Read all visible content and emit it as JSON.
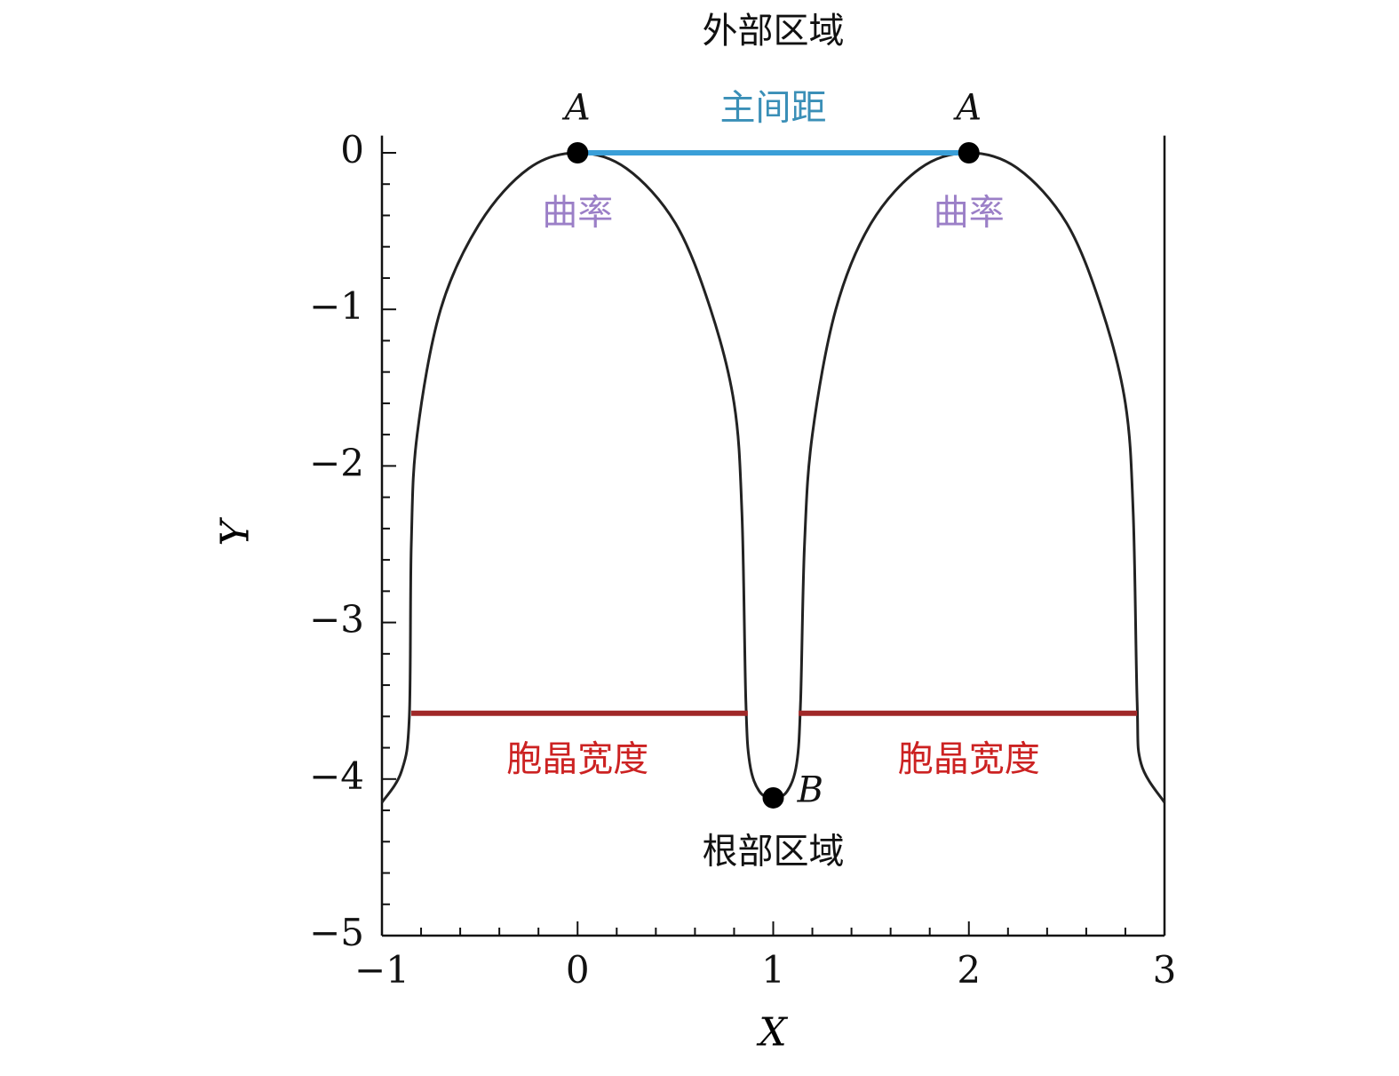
{
  "chart_data": {
    "type": "line",
    "xlabel": "X",
    "ylabel": "Y",
    "xlim": [
      -1,
      3
    ],
    "ylim": [
      -5,
      0.11
    ],
    "xticks": [
      {
        "value": -1,
        "label": "−1"
      },
      0,
      1,
      2,
      3
    ],
    "yticks": [
      0,
      {
        "value": -1,
        "label": "−1"
      },
      {
        "value": -2,
        "label": "−2"
      },
      {
        "value": -3,
        "label": "−3"
      },
      {
        "value": -4,
        "label": "−4"
      },
      {
        "value": -5,
        "label": "−5"
      }
    ],
    "xminorticks": [
      -0.8,
      -0.6,
      -0.4,
      -0.2,
      0.2,
      0.4,
      0.6,
      0.8,
      1.2,
      1.4,
      1.6,
      1.8,
      2.2,
      2.4,
      2.6,
      2.8
    ],
    "yminorticks": [
      -0.2,
      -0.4,
      -0.6,
      -0.8,
      -1.2,
      -1.4,
      -1.6,
      -1.8,
      -2.2,
      -2.4,
      -2.6,
      -2.8,
      -3.2,
      -3.4,
      -3.6,
      -3.8,
      -4.2,
      -4.4,
      -4.6,
      -4.8
    ],
    "series": [
      {
        "color": "#222222",
        "x": [
          -1,
          -0.9,
          -0.86,
          -0.85,
          -0.82,
          -0.7,
          -0.5,
          -0.25,
          0,
          0.25,
          0.5,
          0.68,
          0.8,
          0.84,
          0.86,
          0.88,
          0.93,
          1,
          1.07,
          1.12,
          1.14,
          1.16,
          1.2,
          1.32,
          1.5,
          1.75,
          2,
          2.25,
          2.5,
          2.68,
          2.8,
          2.84,
          2.86,
          2.88,
          3
        ],
        "values": [
          -4.15,
          -3.95,
          -3.6,
          -2.5,
          -1.8,
          -1.0,
          -0.45,
          -0.1,
          0,
          -0.1,
          -0.45,
          -1.0,
          -1.6,
          -2.3,
          -3.5,
          -3.9,
          -4.08,
          -4.12,
          -4.08,
          -3.9,
          -3.5,
          -2.5,
          -1.8,
          -1.0,
          -0.45,
          -0.1,
          0,
          -0.1,
          -0.45,
          -1.0,
          -1.6,
          -2.3,
          -3.5,
          -3.9,
          -4.15
        ]
      }
    ],
    "segments": [
      {
        "x": [
          0,
          2
        ],
        "y": [
          0,
          0
        ],
        "color": "#3a9fd8"
      },
      {
        "x": [
          -0.85,
          0.87
        ],
        "y": [
          -3.58,
          -3.58
        ],
        "color": "#a02828"
      },
      {
        "x": [
          1.13,
          2.86
        ],
        "y": [
          -3.58,
          -3.58
        ],
        "color": "#a02828"
      }
    ],
    "points": [
      {
        "x": 0,
        "y": 0
      },
      {
        "x": 2,
        "y": 0
      },
      {
        "x": 1,
        "y": -4.12
      }
    ],
    "annotations": [
      {
        "text": "外部区域",
        "x": 1,
        "y": 0.76,
        "color": "#111111"
      },
      {
        "text": "A",
        "x": 0,
        "y": 0.27,
        "color": "#111111",
        "italic": true
      },
      {
        "text": "主间距",
        "x": 1,
        "y": 0.27,
        "color": "#3a8fb7"
      },
      {
        "text": "A",
        "x": 2,
        "y": 0.27,
        "color": "#111111",
        "italic": true
      },
      {
        "text": "曲率",
        "x": 0,
        "y": -0.4,
        "color": "#9b7fc7"
      },
      {
        "text": "曲率",
        "x": 2,
        "y": -0.4,
        "color": "#9b7fc7"
      },
      {
        "text": "胞晶宽度",
        "x": 0,
        "y": -3.89,
        "color": "#cc2222"
      },
      {
        "text": "胞晶宽度",
        "x": 2,
        "y": -3.89,
        "color": "#cc2222"
      },
      {
        "text": "B",
        "x": 1.19,
        "y": -4.09,
        "color": "#111111",
        "italic": true
      },
      {
        "text": "根部区域",
        "x": 1,
        "y": -4.48,
        "color": "#111111"
      }
    ]
  }
}
